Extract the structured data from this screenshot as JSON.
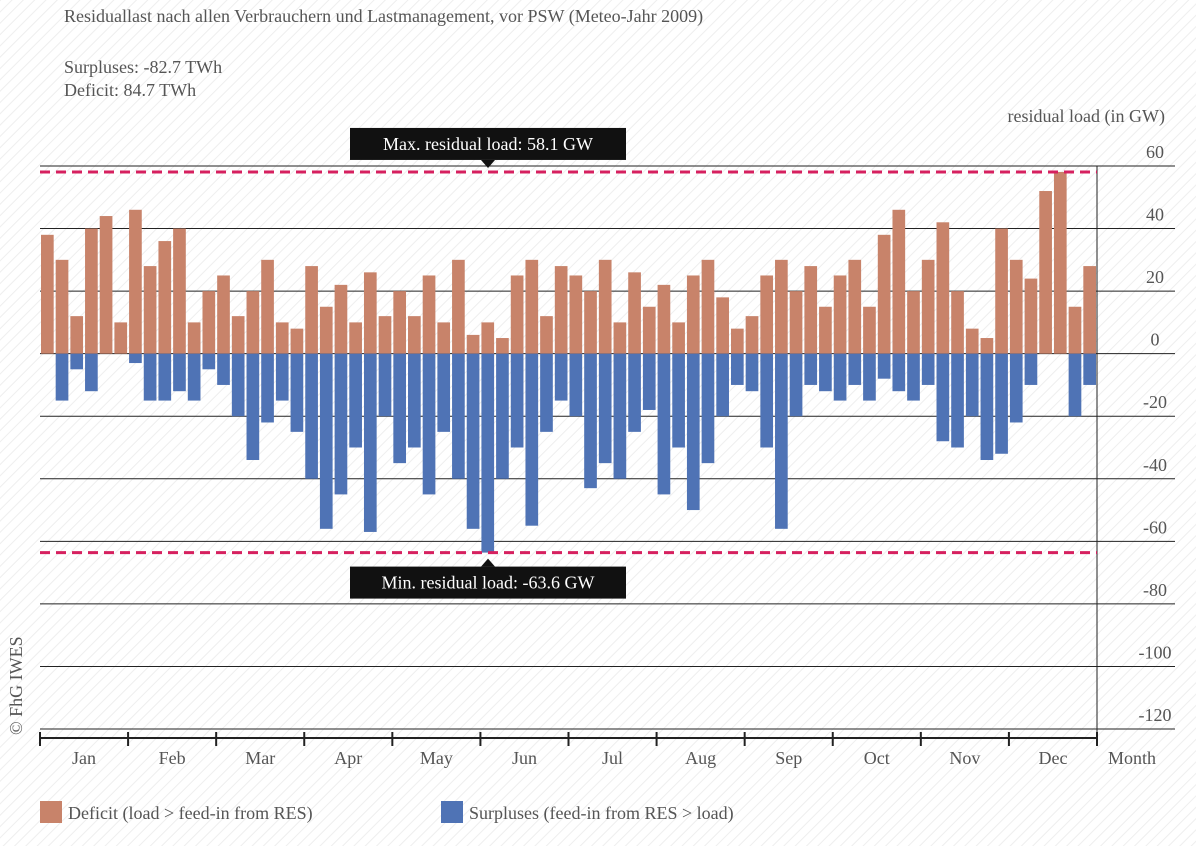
{
  "chart_data": {
    "type": "bar",
    "title": "Residuallast nach allen Verbrauchern und Lastmanagement, vor PSW (Meteo-Jahr 2009)",
    "subtitle": [
      "Surpluses: -82.7 TWh",
      "Deficit: 84.7 TWh"
    ],
    "y_label": "residual load (in GW)",
    "x_label": "Month",
    "credit": "© FhG IWES",
    "categories": [
      "Jan",
      "Feb",
      "Mar",
      "Apr",
      "May",
      "Jun",
      "Jul",
      "Aug",
      "Sep",
      "Oct",
      "Nov",
      "Dec"
    ],
    "series": [
      {
        "name": "Deficit (load > feed-in from RES)",
        "color": "#c8836a",
        "values": [
          [
            38,
            30,
            12,
            40,
            44,
            10
          ],
          [
            46,
            28,
            36,
            40,
            10,
            20
          ],
          [
            25,
            12,
            20,
            30,
            10,
            8
          ],
          [
            28,
            15,
            22,
            10,
            26,
            12
          ],
          [
            20,
            12,
            25,
            10,
            30,
            6
          ],
          [
            10,
            5,
            25,
            30,
            12,
            28
          ],
          [
            25,
            20,
            30,
            10,
            26,
            15
          ],
          [
            22,
            10,
            25,
            30,
            18,
            8
          ],
          [
            12,
            25,
            30,
            20,
            28,
            15
          ],
          [
            25,
            30,
            15,
            38,
            46,
            20
          ],
          [
            30,
            42,
            20,
            8,
            5,
            40
          ],
          [
            30,
            24,
            52,
            58.1,
            15,
            28
          ]
        ]
      },
      {
        "name": "Surpluses (feed-in from RES > load)",
        "color": "#4f73b5",
        "values": [
          [
            0,
            -15,
            -5,
            -12,
            0,
            0
          ],
          [
            -3,
            -15,
            -15,
            -12,
            -15,
            -5
          ],
          [
            -10,
            -20,
            -34,
            -22,
            -15,
            -25
          ],
          [
            -40,
            -56,
            -45,
            -30,
            -57,
            -20
          ],
          [
            -35,
            -30,
            -45,
            -25,
            -40,
            -56
          ],
          [
            -63.6,
            -40,
            -30,
            -55,
            -25,
            -15
          ],
          [
            -20,
            -43,
            -35,
            -40,
            -25,
            -18
          ],
          [
            -45,
            -30,
            -50,
            -35,
            -20,
            -10
          ],
          [
            -12,
            -30,
            -56,
            -20,
            -10,
            -12
          ],
          [
            -15,
            -10,
            -15,
            -8,
            -12,
            -15
          ],
          [
            -10,
            -28,
            -30,
            -20,
            -34,
            -32
          ],
          [
            -22,
            -10,
            0,
            0,
            -20,
            -10
          ]
        ]
      }
    ],
    "reference_lines": [
      {
        "value": 58.1,
        "label": "Max. residual load: 58.1 GW",
        "color": "#d6205f"
      },
      {
        "value": -63.6,
        "label": "Min. residual load: -63.6 GW",
        "color": "#d6205f"
      }
    ],
    "ylim": [
      -120,
      60
    ],
    "yticks": [
      60,
      40,
      20,
      0,
      -20,
      -40,
      -60,
      -80,
      -100,
      -120
    ],
    "grid": true
  }
}
